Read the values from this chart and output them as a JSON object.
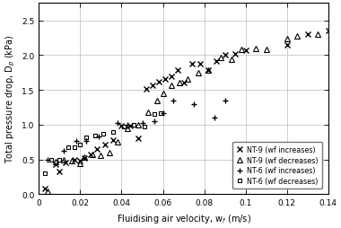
{
  "title": "",
  "xlabel": "Fluidising air velocity, w_f (m/s)",
  "ylabel": "Total pressure drop, D_p (kPa)",
  "xlim": [
    0,
    0.14
  ],
  "ylim": [
    0,
    2.75
  ],
  "xticks": [
    0,
    0.02,
    0.04,
    0.06,
    0.08,
    0.1,
    0.12,
    0.14
  ],
  "yticks": [
    0,
    0.5,
    1.0,
    1.5,
    2.0,
    2.5
  ],
  "nt9_inc_x": [
    0.003,
    0.008,
    0.01,
    0.013,
    0.017,
    0.02,
    0.022,
    0.025,
    0.028,
    0.032,
    0.036,
    0.04,
    0.044,
    0.048,
    0.052,
    0.055,
    0.058,
    0.061,
    0.064,
    0.067,
    0.07,
    0.074,
    0.078,
    0.082,
    0.086,
    0.09,
    0.095,
    0.1,
    0.12,
    0.13,
    0.14
  ],
  "nt9_inc_y": [
    0.08,
    0.43,
    0.33,
    0.46,
    0.5,
    0.48,
    0.52,
    0.57,
    0.65,
    0.72,
    0.78,
    0.99,
    0.98,
    0.8,
    1.52,
    1.57,
    1.62,
    1.65,
    1.7,
    1.78,
    1.6,
    1.87,
    1.88,
    1.78,
    1.92,
    2.0,
    2.02,
    2.07,
    2.14,
    2.3,
    2.35
  ],
  "nt9_dec_x": [
    0.004,
    0.008,
    0.012,
    0.016,
    0.02,
    0.022,
    0.026,
    0.03,
    0.034,
    0.038,
    0.043,
    0.048,
    0.053,
    0.057,
    0.06,
    0.064,
    0.068,
    0.072,
    0.077,
    0.082,
    0.088,
    0.093,
    0.098,
    0.105,
    0.11,
    0.12,
    0.125,
    0.135
  ],
  "nt9_dec_y": [
    0.05,
    0.47,
    0.5,
    0.48,
    0.45,
    0.54,
    0.57,
    0.56,
    0.6,
    0.75,
    0.95,
    1.0,
    1.18,
    1.35,
    1.45,
    1.57,
    1.6,
    1.65,
    1.75,
    1.78,
    1.97,
    1.94,
    2.08,
    2.1,
    2.08,
    2.24,
    2.28,
    2.3
  ],
  "nt6_inc_x": [
    0.004,
    0.012,
    0.018,
    0.023,
    0.029,
    0.038,
    0.043,
    0.05,
    0.056,
    0.06,
    0.065,
    0.075,
    0.085,
    0.09
  ],
  "nt6_inc_y": [
    0.5,
    0.63,
    0.77,
    0.76,
    0.83,
    1.02,
    1.0,
    1.03,
    1.05,
    1.16,
    1.35,
    1.3,
    1.1,
    1.35
  ],
  "nt6_dec_x": [
    0.003,
    0.006,
    0.01,
    0.014,
    0.017,
    0.02,
    0.023,
    0.027,
    0.031,
    0.036,
    0.041,
    0.046,
    0.051,
    0.056,
    0.059
  ],
  "nt6_dec_y": [
    0.3,
    0.5,
    0.5,
    0.68,
    0.68,
    0.72,
    0.82,
    0.85,
    0.87,
    0.9,
    0.97,
    1.0,
    0.97,
    1.15,
    1.17
  ],
  "legend_labels": [
    "NT-9 (wf increases)",
    "NT-9 (wf decreases)",
    "NT-6 (wf increases)",
    "NT-6 (wf decreases)"
  ],
  "marker_color": "#000000",
  "background_color": "#ffffff",
  "grid_color": "#bbbbbb"
}
